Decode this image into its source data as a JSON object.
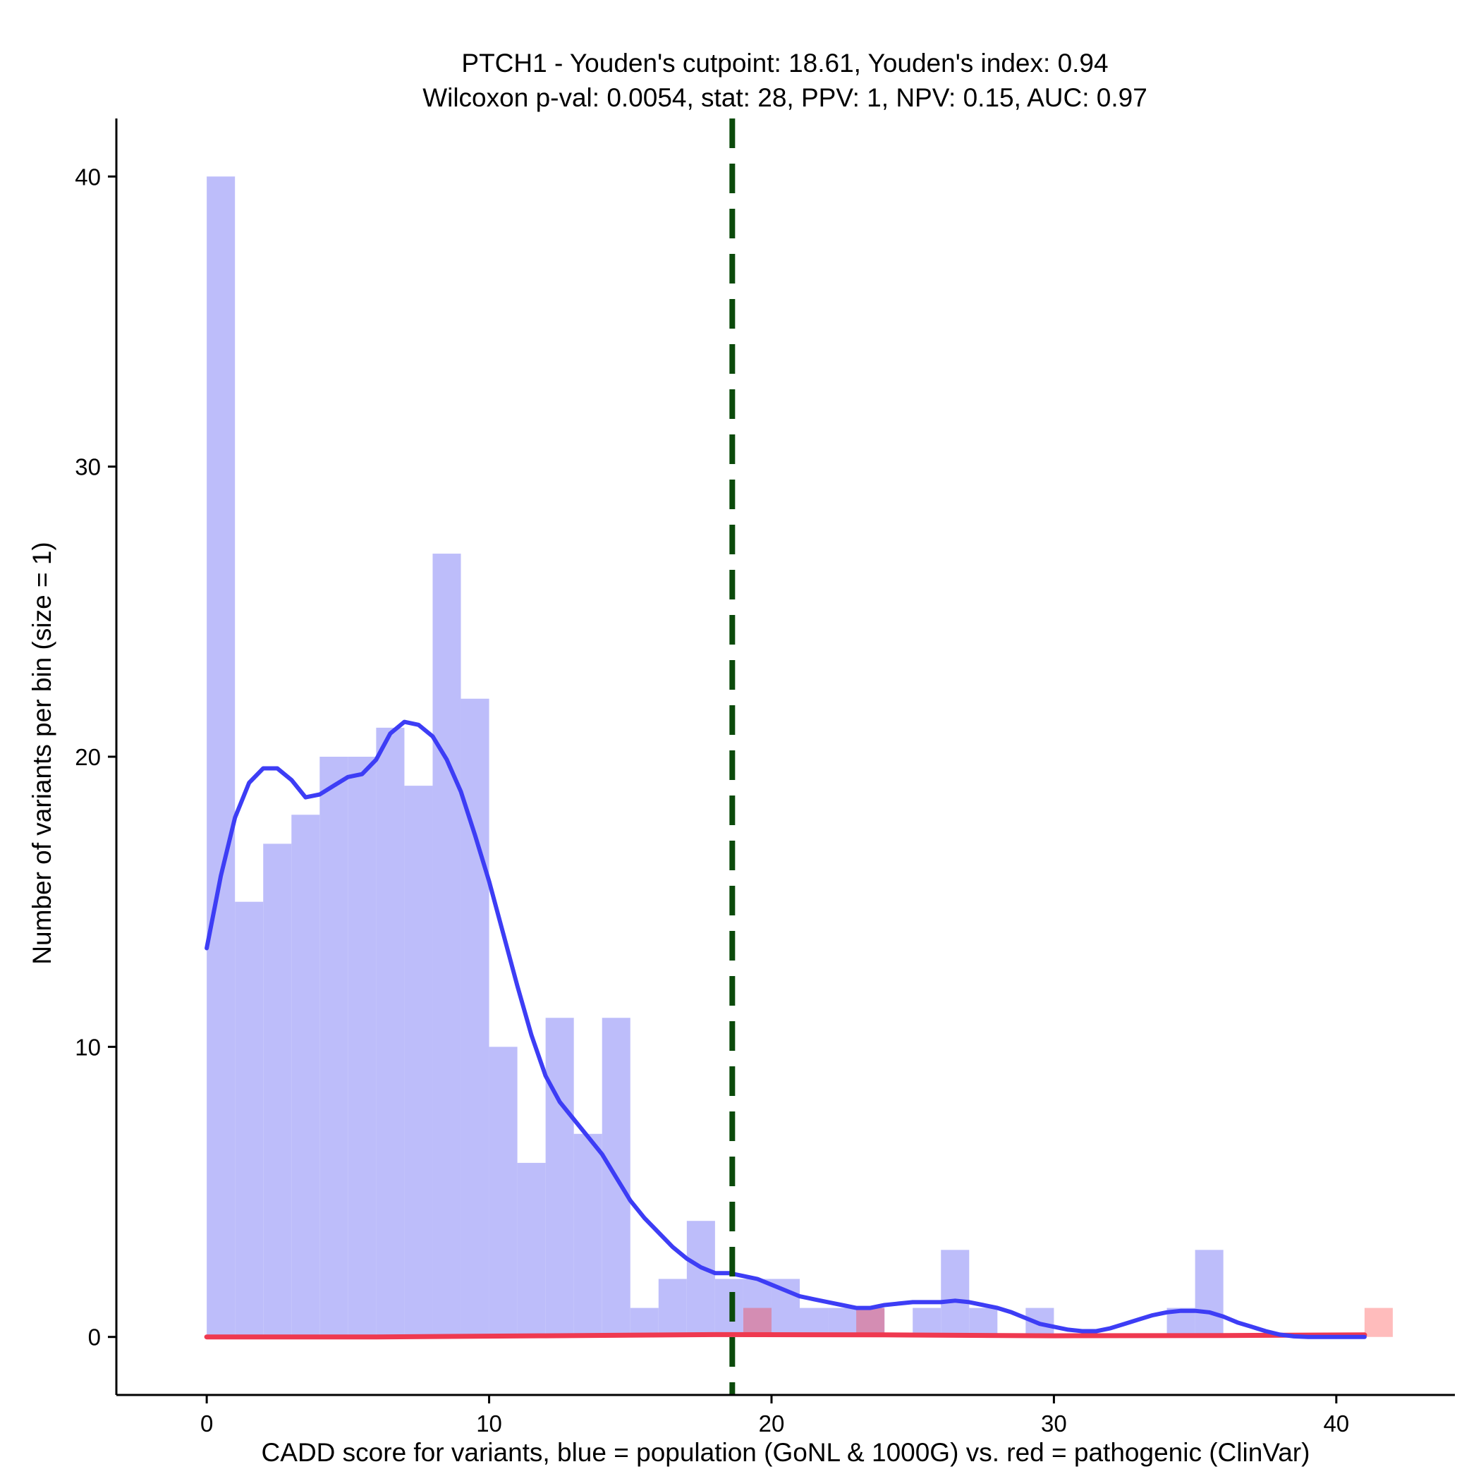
{
  "colors": {
    "population_bar": "#bdbdfa",
    "population_curve": "#3d3df5",
    "pathogenic_bar": "#ffbcbc",
    "pathogenic_overlap": "#d48db3",
    "pathogenic_curve": "#ef3950",
    "cutpoint_line": "#0b4a0b",
    "axis": "#000000"
  },
  "chart_data": {
    "type": "bar",
    "title": "PTCH1 - Youden's cutpoint: 18.61, Youden's index: 0.94",
    "subtitle": "Wilcoxon p-val: 0.0054, stat: 28, PPV: 1, NPV: 0.15, AUC: 0.97",
    "xlabel": "CADD score for variants, blue = population (GoNL & 1000G) vs. red = pathogenic (ClinVar)",
    "ylabel": "Number of variants per bin (size = 1)",
    "xlim": [
      -3.2,
      44.2
    ],
    "ylim": [
      -2,
      42
    ],
    "xticks": [
      0,
      10,
      20,
      30,
      40
    ],
    "yticks": [
      0,
      10,
      20,
      30,
      40
    ],
    "bin_width": 1,
    "cutpoint": 18.61,
    "series": [
      {
        "name": "population (GoNL & 1000G)",
        "bins": [
          {
            "start": 0,
            "count": 40
          },
          {
            "start": 1,
            "count": 15
          },
          {
            "start": 2,
            "count": 17
          },
          {
            "start": 3,
            "count": 18
          },
          {
            "start": 4,
            "count": 20
          },
          {
            "start": 5,
            "count": 20
          },
          {
            "start": 6,
            "count": 21
          },
          {
            "start": 7,
            "count": 19
          },
          {
            "start": 8,
            "count": 27
          },
          {
            "start": 9,
            "count": 22
          },
          {
            "start": 10,
            "count": 10
          },
          {
            "start": 11,
            "count": 6
          },
          {
            "start": 12,
            "count": 11
          },
          {
            "start": 13,
            "count": 7
          },
          {
            "start": 14,
            "count": 11
          },
          {
            "start": 15,
            "count": 1
          },
          {
            "start": 16,
            "count": 2
          },
          {
            "start": 17,
            "count": 4
          },
          {
            "start": 18,
            "count": 2
          },
          {
            "start": 19,
            "count": 2
          },
          {
            "start": 20,
            "count": 2
          },
          {
            "start": 21,
            "count": 1
          },
          {
            "start": 22,
            "count": 1
          },
          {
            "start": 23,
            "count": 1
          },
          {
            "start": 25,
            "count": 1
          },
          {
            "start": 26,
            "count": 3
          },
          {
            "start": 27,
            "count": 1
          },
          {
            "start": 29,
            "count": 1
          },
          {
            "start": 34,
            "count": 1
          },
          {
            "start": 35,
            "count": 3
          }
        ],
        "density": [
          [
            0,
            13.4
          ],
          [
            0.5,
            15.9
          ],
          [
            1,
            17.9
          ],
          [
            1.5,
            19.1
          ],
          [
            2,
            19.6
          ],
          [
            2.5,
            19.6
          ],
          [
            3,
            19.2
          ],
          [
            3.5,
            18.6
          ],
          [
            4,
            18.7
          ],
          [
            4.5,
            19.0
          ],
          [
            5,
            19.3
          ],
          [
            5.5,
            19.4
          ],
          [
            6,
            19.9
          ],
          [
            6.5,
            20.8
          ],
          [
            7,
            21.2
          ],
          [
            7.5,
            21.1
          ],
          [
            8,
            20.7
          ],
          [
            8.5,
            19.9
          ],
          [
            9,
            18.8
          ],
          [
            9.5,
            17.3
          ],
          [
            10,
            15.7
          ],
          [
            10.5,
            13.9
          ],
          [
            11,
            12.1
          ],
          [
            11.5,
            10.4
          ],
          [
            12,
            9.0
          ],
          [
            12.5,
            8.1
          ],
          [
            13,
            7.5
          ],
          [
            13.5,
            6.9
          ],
          [
            14,
            6.3
          ],
          [
            14.5,
            5.5
          ],
          [
            15,
            4.7
          ],
          [
            15.5,
            4.1
          ],
          [
            16,
            3.6
          ],
          [
            16.5,
            3.1
          ],
          [
            17,
            2.7
          ],
          [
            17.5,
            2.4
          ],
          [
            18,
            2.2
          ],
          [
            18.5,
            2.2
          ],
          [
            19,
            2.1
          ],
          [
            19.5,
            2.0
          ],
          [
            20,
            1.8
          ],
          [
            20.5,
            1.6
          ],
          [
            21,
            1.4
          ],
          [
            21.5,
            1.3
          ],
          [
            22,
            1.2
          ],
          [
            22.5,
            1.1
          ],
          [
            23,
            1.0
          ],
          [
            23.5,
            1.0
          ],
          [
            24,
            1.1
          ],
          [
            24.5,
            1.15
          ],
          [
            25,
            1.2
          ],
          [
            25.5,
            1.2
          ],
          [
            26,
            1.2
          ],
          [
            26.5,
            1.25
          ],
          [
            27,
            1.2
          ],
          [
            27.5,
            1.1
          ],
          [
            28,
            1.0
          ],
          [
            28.5,
            0.85
          ],
          [
            29,
            0.65
          ],
          [
            29.5,
            0.45
          ],
          [
            30,
            0.35
          ],
          [
            30.5,
            0.25
          ],
          [
            31,
            0.2
          ],
          [
            31.5,
            0.2
          ],
          [
            32,
            0.3
          ],
          [
            32.5,
            0.45
          ],
          [
            33,
            0.6
          ],
          [
            33.5,
            0.75
          ],
          [
            34,
            0.85
          ],
          [
            34.5,
            0.9
          ],
          [
            35,
            0.9
          ],
          [
            35.5,
            0.85
          ],
          [
            36,
            0.7
          ],
          [
            36.5,
            0.5
          ],
          [
            37,
            0.35
          ],
          [
            37.5,
            0.2
          ],
          [
            38,
            0.08
          ],
          [
            38.5,
            0.02
          ],
          [
            39,
            0.0
          ],
          [
            41,
            0.0
          ]
        ]
      },
      {
        "name": "pathogenic (ClinVar)",
        "bins": [
          {
            "start": 19,
            "count": 1
          },
          {
            "start": 23,
            "count": 1
          },
          {
            "start": 41,
            "count": 1
          }
        ],
        "density": [
          [
            0,
            0.0
          ],
          [
            6,
            0.0
          ],
          [
            12,
            0.04
          ],
          [
            18,
            0.08
          ],
          [
            24,
            0.07
          ],
          [
            30,
            0.04
          ],
          [
            36,
            0.05
          ],
          [
            41,
            0.07
          ]
        ]
      }
    ]
  }
}
